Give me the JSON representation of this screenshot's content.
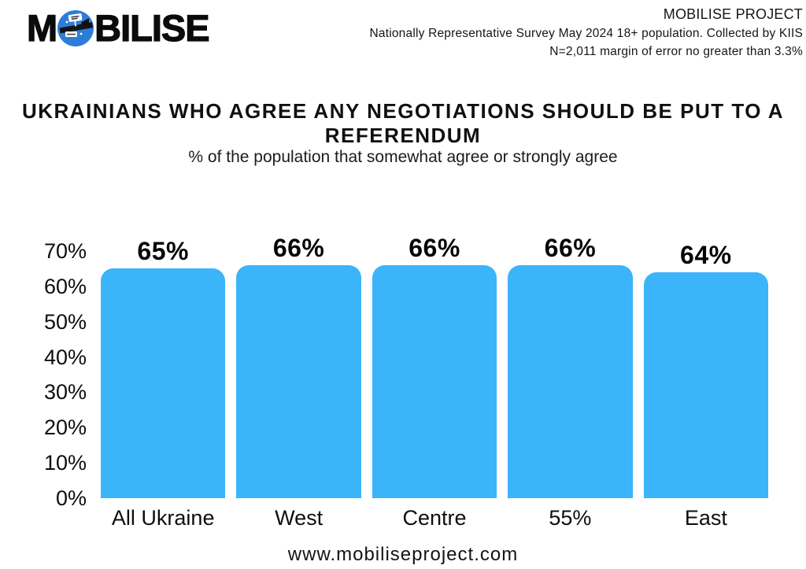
{
  "header": {
    "logo_prefix": "M",
    "logo_suffix": "BILISE",
    "project_name": "MOBILISE PROJECT",
    "survey_info": "Nationally Representative Survey May 2024 18+ population. Collected by KIIS",
    "sample_info": "N=2,011 margin of error no greater than 3.3%"
  },
  "title": {
    "lines": [
      "UKRAINIANS WHO AGREE ANY NEGOTIATIONS SHOULD BE PUT TO A",
      "REFERENDUM"
    ]
  },
  "subtitle": "% of the population that somewhat agree or strongly agree",
  "footer": {
    "url": "www.mobiliseproject.com"
  },
  "colors": {
    "bar": "#3bb4fa",
    "globe": "#2d7dd8",
    "text": "#111111"
  },
  "chart_data": {
    "type": "bar",
    "title": "UKRAINIANS WHO AGREE ANY NEGOTIATIONS SHOULD BE PUT TO A REFERENDUM",
    "subtitle": "% of the population that somewhat agree or strongly agree",
    "categories": [
      "All Ukraine",
      "West",
      "Centre",
      "55%",
      "East"
    ],
    "values": [
      65,
      66,
      66,
      66,
      64
    ],
    "data_labels": [
      "65%",
      "66%",
      "66%",
      "66%",
      "64%"
    ],
    "y_ticks": [
      {
        "label": "70%",
        "value": 70
      },
      {
        "label": "60%",
        "value": 60
      },
      {
        "label": "50%",
        "value": 50
      },
      {
        "label": "40%",
        "value": 40
      },
      {
        "label": "30%",
        "value": 30
      },
      {
        "label": "20%",
        "value": 20
      },
      {
        "label": "10%",
        "value": 10
      },
      {
        "label": "0%",
        "value": 0
      }
    ],
    "ylim": [
      0,
      70
    ],
    "xlabel": "",
    "ylabel": "",
    "grid": false,
    "legend": false,
    "bar_color": "#3bb4fa"
  }
}
